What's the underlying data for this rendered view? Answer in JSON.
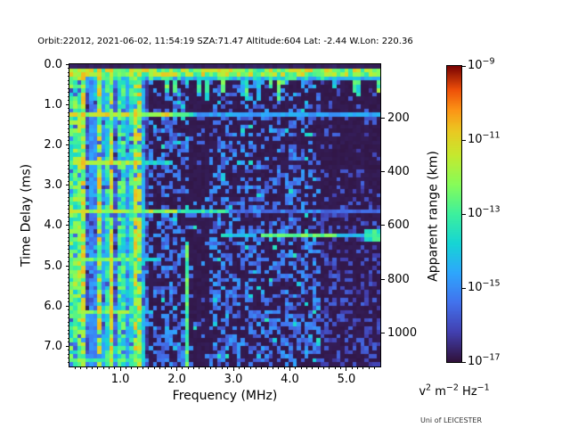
{
  "title": "Orbit:22012, 2021-06-02, 11:54:19 SZA:71.47 Altitude:604 Lat: -2.44 W.Lon: 220.36",
  "branding": "Uni of LEICESTER",
  "axes": {
    "x": {
      "label": "Frequency (MHz)",
      "min": 0.1,
      "max": 5.6,
      "major_ticks": [
        1.0,
        2.0,
        3.0,
        4.0,
        5.0
      ],
      "tick_labels": [
        "1.0",
        "2.0",
        "3.0",
        "4.0",
        "5.0"
      ],
      "minor_step": 0.1
    },
    "y": {
      "label": "Time Delay (ms)",
      "min": 0.0,
      "max": 7.5,
      "major_ticks": [
        0,
        1,
        2,
        3,
        4,
        5,
        6,
        7
      ],
      "tick_labels": [
        "0.0",
        "1.0",
        "2.0",
        "3.0",
        "4.0",
        "5.0",
        "6.0",
        "7.0"
      ],
      "minor_step": 0.1
    },
    "y2": {
      "label": "Apparent range (km)",
      "ticks": [
        200,
        400,
        600,
        800,
        1000
      ],
      "tick_labels": [
        "200",
        "400",
        "600",
        "800",
        "1000"
      ],
      "km_per_ms": 149.896
    }
  },
  "colorbar": {
    "scale": "log",
    "vmin": 1e-17,
    "vmax": 1e-09,
    "ticks": [
      {
        "base": "10",
        "exp": "−9"
      },
      {
        "base": "10",
        "exp": "−11"
      },
      {
        "base": "10",
        "exp": "−13"
      },
      {
        "base": "10",
        "exp": "−15"
      },
      {
        "base": "10",
        "exp": "−17"
      }
    ],
    "unit": {
      "p1": "v",
      "s1": "2",
      "p2": " m",
      "s2": "−2",
      "p3": " Hz",
      "s3": "−1"
    },
    "colormap": "turbo"
  },
  "chart_data": {
    "type": "heatmap",
    "xlabel": "Frequency (MHz)",
    "ylabel": "Time Delay (ms)",
    "x_range": [
      0.1,
      5.6
    ],
    "y_range": [
      0.0,
      7.5
    ],
    "value_scale": {
      "type": "log",
      "min": 1e-17,
      "max": 1e-09,
      "unit": "v2 m-2 Hz-1"
    },
    "grid": {
      "cols": 78,
      "rows": 75
    },
    "seed": 1337,
    "colormap_stops": [
      [
        0.0,
        [
          48,
          18,
          59
        ]
      ],
      [
        0.1,
        [
          66,
          64,
          176
        ]
      ],
      [
        0.2,
        [
          66,
          114,
          237
        ]
      ],
      [
        0.3,
        [
          46,
          166,
          253
        ]
      ],
      [
        0.4,
        [
          22,
          213,
          213
        ]
      ],
      [
        0.5,
        [
          61,
          240,
          157
        ]
      ],
      [
        0.6,
        [
          135,
          252,
          89
        ]
      ],
      [
        0.7,
        [
          198,
          233,
          46
        ]
      ],
      [
        0.78,
        [
          234,
          201,
          34
        ]
      ],
      [
        0.85,
        [
          252,
          150,
          22
        ]
      ],
      [
        0.92,
        [
          238,
          80,
          9
        ]
      ],
      [
        1.0,
        [
          122,
          4,
          3
        ]
      ]
    ],
    "features": {
      "noise": {
        "base": 0.3,
        "slope_per_ms": 0.028,
        "low_freq_boost_below_mhz": 1.95,
        "dark_band_mhz": [
          2.25,
          2.58
        ],
        "dark_band_factor": 0.25,
        "soft_gap_mhz": [
          1.42,
          1.62
        ],
        "soft_gap_factor": 0.55,
        "quiet_above_mhz": 4.55
      },
      "surface_echo": {
        "rows_ms": [
          0.1,
          0.4
        ],
        "value_range": [
          0.45,
          0.8
        ],
        "spike_chance": 0.32,
        "spike_max_rows": 6,
        "spike_value": [
          0.3,
          0.6
        ]
      },
      "plasma_stripes": {
        "max_mhz": 1.5,
        "solid_below_mhz": 0.3,
        "bright_lines_mhz": [
          0.38,
          0.62,
          0.85,
          1.3
        ],
        "bright_value": 0.85,
        "taper_above_mhz": 1.2,
        "taper_factor": 0.65
      },
      "cyclotron_lines": [
        {
          "t_ms": 1.22,
          "strong_to_mhz": 1.9,
          "mid_to_mhz": 2.3,
          "strong": 0.7,
          "mid": 0.48,
          "weak": 0.3
        },
        {
          "t_ms": 2.44,
          "strong_to_mhz": 1.35,
          "mid_to_mhz": 1.9,
          "strong": 0.66,
          "mid": 0.42,
          "weak": 0.0
        },
        {
          "t_ms": 3.66,
          "strong_to_mhz": 2.0,
          "mid_to_mhz": 2.9,
          "strong": 0.64,
          "mid": 0.45,
          "weak": 0.18
        },
        {
          "t_ms": 4.88,
          "strong_to_mhz": 1.2,
          "mid_to_mhz": 1.75,
          "strong": 0.55,
          "mid": 0.38,
          "weak": 0.0
        },
        {
          "t_ms": 6.1,
          "strong_to_mhz": 1.35,
          "mid_to_mhz": 1.6,
          "strong": 0.6,
          "mid": 0.35,
          "weak": 0.0
        },
        {
          "t_ms": 7.32,
          "strong_to_mhz": 1.3,
          "mid_to_mhz": 1.5,
          "strong": 0.5,
          "mid": 0.3,
          "weak": 0.0
        }
      ],
      "ionosphere_trace": {
        "t_ms": 4.25,
        "segments": [
          {
            "mhz": [
              2.8,
              3.4
            ],
            "value": 0.38
          },
          {
            "mhz": [
              3.5,
              4.8
            ],
            "value": 0.56
          },
          {
            "mhz": [
              4.8,
              5.3
            ],
            "value": 0.34
          },
          {
            "mhz": [
              5.35,
              5.6
            ],
            "value": 0.52
          }
        ]
      },
      "thin_line": {
        "mhz": 2.21,
        "from_ms": 4.4,
        "value": 0.42
      }
    }
  }
}
